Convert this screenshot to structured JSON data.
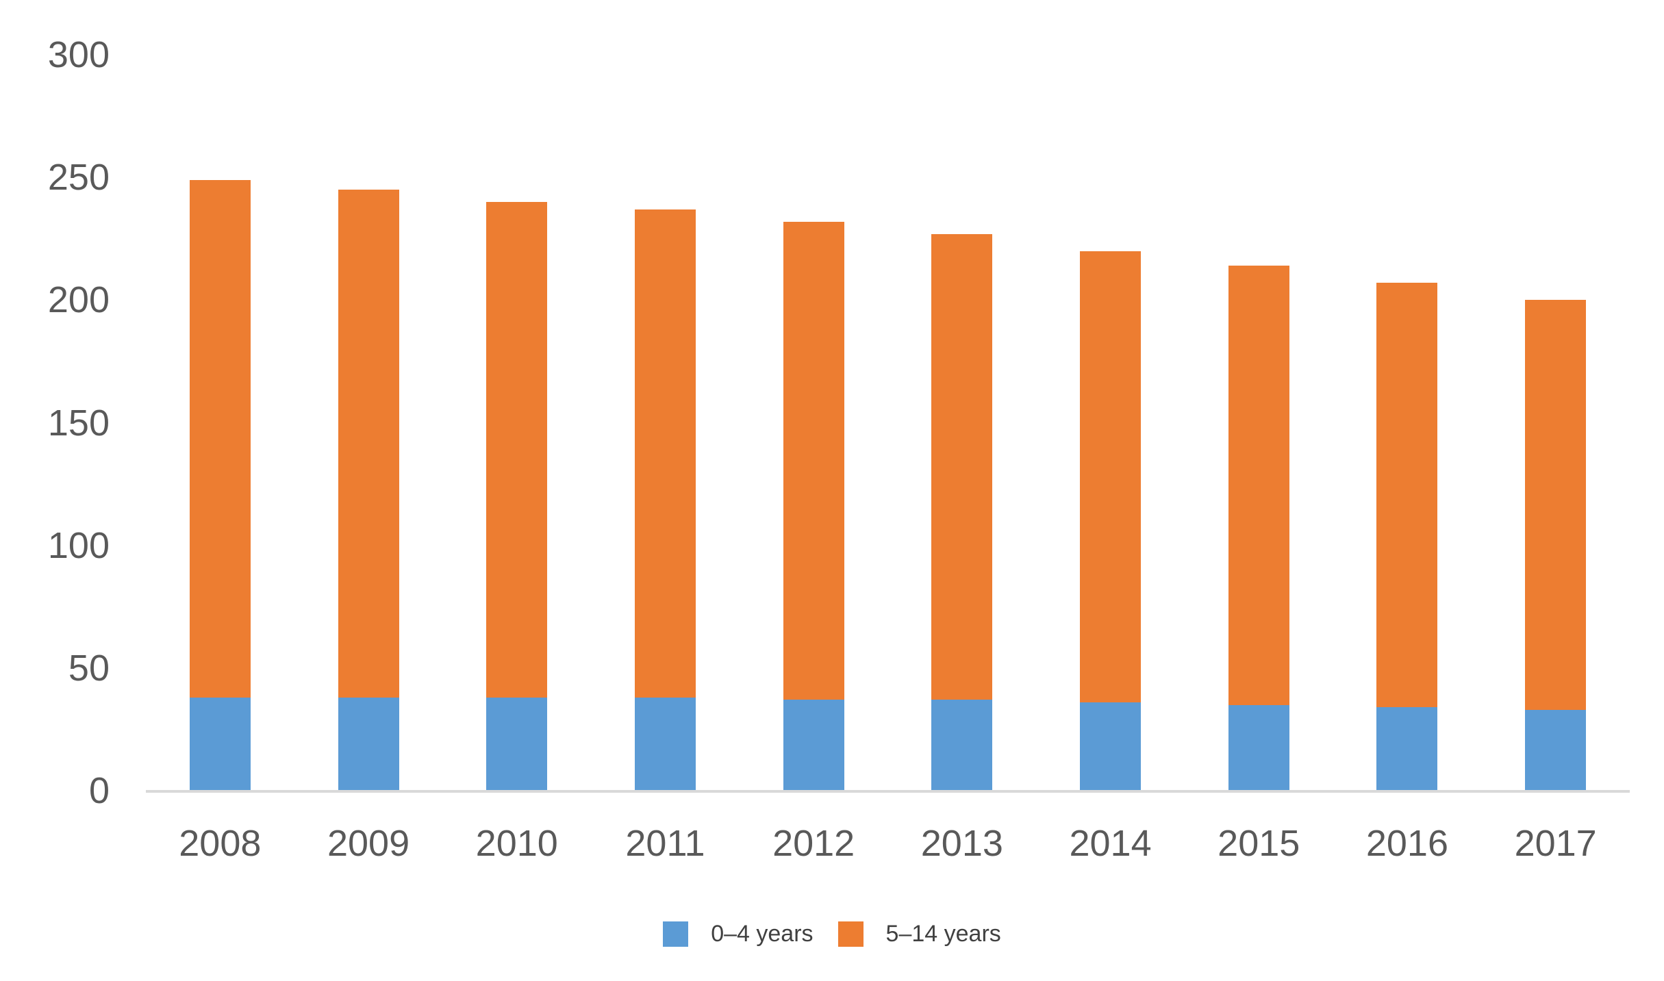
{
  "chart_data": {
    "type": "bar",
    "stacked": true,
    "title": "",
    "xlabel": "",
    "ylabel": "",
    "categories": [
      "2008",
      "2009",
      "2010",
      "2011",
      "2012",
      "2013",
      "2014",
      "2015",
      "2016",
      "2017"
    ],
    "series": [
      {
        "name": "0–4 years",
        "color": "#5B9BD5",
        "values": [
          38,
          38,
          38,
          38,
          37,
          37,
          36,
          35,
          34,
          33
        ]
      },
      {
        "name": "5–14 years",
        "color": "#ED7D31",
        "values": [
          211,
          207,
          202,
          199,
          195,
          190,
          184,
          179,
          173,
          167
        ]
      }
    ],
    "stacked_totals": [
      249,
      245,
      240,
      237,
      232,
      227,
      220,
      214,
      207,
      200
    ],
    "ylim": [
      0,
      300
    ],
    "yticks": [
      0,
      50,
      100,
      150,
      200,
      250,
      300
    ],
    "grid": false,
    "legend_position": "bottom-center",
    "axis_line_color": "#D9D9D9",
    "tick_label_color": "#595959"
  }
}
